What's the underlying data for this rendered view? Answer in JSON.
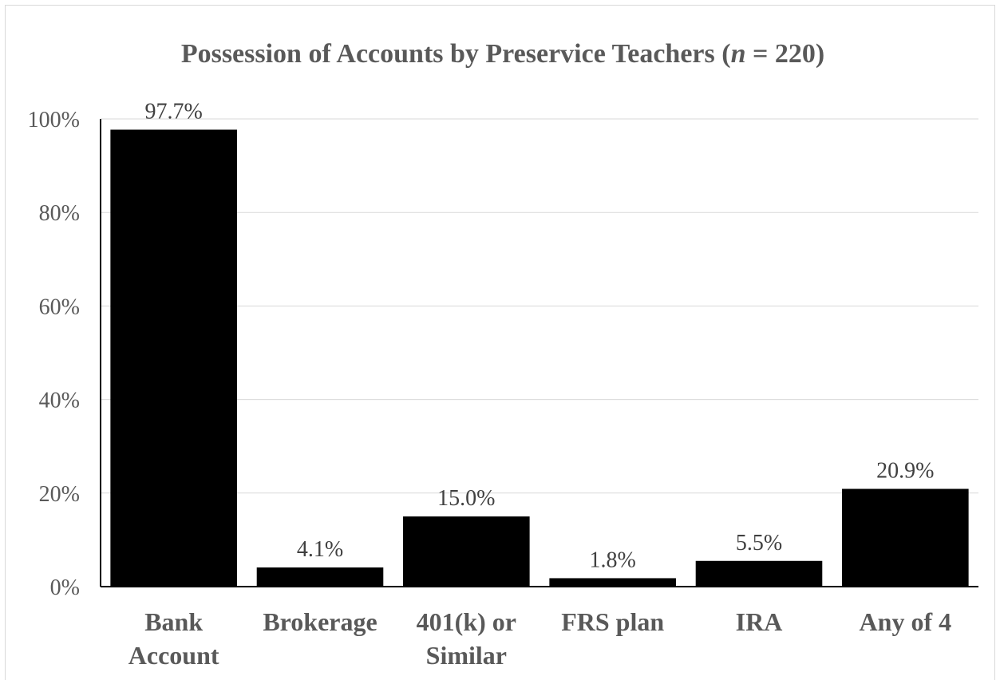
{
  "chart_data": {
    "type": "bar",
    "title_parts": [
      "Possession of Accounts by Preservice Teachers (",
      "n",
      " = 220)"
    ],
    "categories": [
      [
        "Bank",
        "Account"
      ],
      [
        "Brokerage"
      ],
      [
        "401(k) or",
        "Similar"
      ],
      [
        "FRS plan"
      ],
      [
        "IRA"
      ],
      [
        "Any of 4"
      ]
    ],
    "values": [
      97.7,
      4.1,
      15.0,
      1.8,
      5.5,
      20.9
    ],
    "data_labels": [
      "97.7%",
      "4.1%",
      "15.0%",
      "1.8%",
      "5.5%",
      "20.9%"
    ],
    "yticks": [
      0,
      20,
      40,
      60,
      80,
      100
    ],
    "ytick_labels": [
      "0%",
      "20%",
      "40%",
      "60%",
      "80%",
      "100%"
    ],
    "ylim": [
      0,
      100
    ],
    "grid": true,
    "bar_color": "#000000",
    "xlabel": "",
    "ylabel": ""
  }
}
